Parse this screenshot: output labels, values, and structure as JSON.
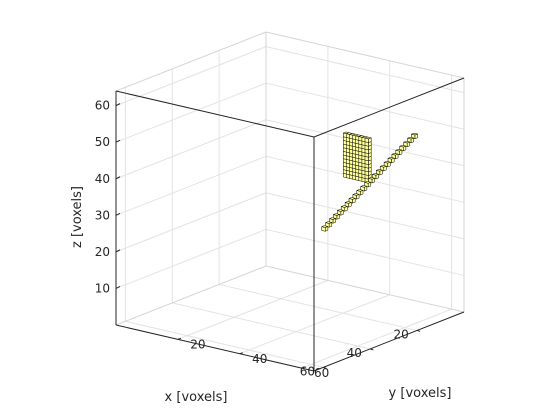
{
  "chart_data": {
    "type": "scatter",
    "projection": "3d",
    "xlabel": "x [voxels]",
    "ylabel": "y [voxels]",
    "zlabel": "z [voxels]",
    "xlim": [
      0,
      64
    ],
    "ylim": [
      0,
      64
    ],
    "zlim": [
      0,
      64
    ],
    "xticks": [
      20,
      40,
      60
    ],
    "yticks": [
      20,
      40,
      60
    ],
    "zticks": [
      10,
      20,
      30,
      40,
      50,
      60
    ],
    "grid": true,
    "marker_fill": "#ffff99",
    "marker_edge": "#000000",
    "series": [
      {
        "marker": "voxel-cube",
        "shape": "rectangular-patch",
        "x": 0,
        "y_range": [
          26,
          33
        ],
        "z_range": [
          30,
          41
        ]
      },
      {
        "marker": "voxel-cube",
        "shape": "diagonal-line",
        "x": 0,
        "start": {
          "y": 48,
          "z": 45
        },
        "end": {
          "y": 19,
          "z": 14
        },
        "count": 24
      }
    ]
  }
}
